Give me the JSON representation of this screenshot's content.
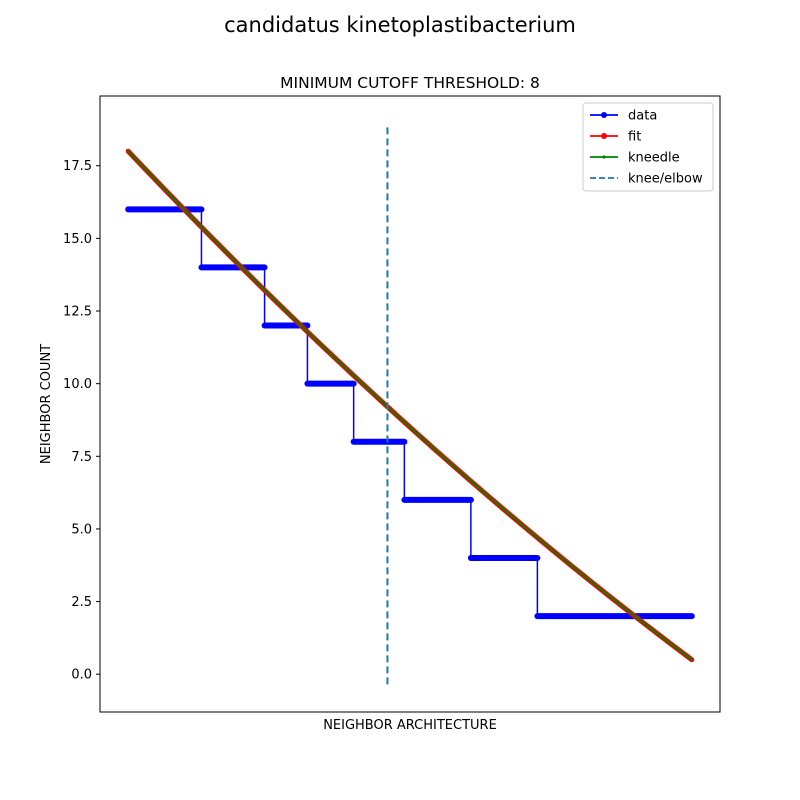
{
  "chart_data": {
    "type": "line",
    "suptitle": "candidatus kinetoplastibacterium",
    "title": "MINIMUM CUTOFF THRESHOLD: 8",
    "xlabel": "NEIGHBOR ARCHITECTURE",
    "ylabel": "NEIGHBOR COUNT",
    "xlim": [
      -2.5,
      52.5
    ],
    "ylim": [
      -1.3,
      19.9
    ],
    "yticks": [
      0.0,
      2.5,
      5.0,
      7.5,
      10.0,
      12.5,
      15.0,
      17.5
    ],
    "ytick_labels": [
      "0.0",
      "2.5",
      "5.0",
      "7.5",
      "10.0",
      "12.5",
      "15.0",
      "17.5"
    ],
    "legend_position": "top-right",
    "data_steps": [
      {
        "value": 16,
        "x_start": 0.0,
        "x_end": 6.5
      },
      {
        "value": 14,
        "x_start": 6.5,
        "x_end": 12.1
      },
      {
        "value": 12,
        "x_start": 12.1,
        "x_end": 15.9
      },
      {
        "value": 10,
        "x_start": 15.9,
        "x_end": 20.0
      },
      {
        "value": 8,
        "x_start": 20.0,
        "x_end": 24.5
      },
      {
        "value": 6,
        "x_start": 24.5,
        "x_end": 30.4
      },
      {
        "value": 4,
        "x_start": 30.4,
        "x_end": 36.3
      },
      {
        "value": 2,
        "x_start": 36.3,
        "x_end": 50.0
      }
    ],
    "fit": {
      "x": [
        0,
        50
      ],
      "y_start": 18.0,
      "y_end": 0.5,
      "curvature": 0.0012
    },
    "knee_x": 23.0,
    "knee_y_range": [
      -0.35,
      18.9
    ],
    "series": [
      {
        "name": "data",
        "color": "#0000ff",
        "marker": "circle"
      },
      {
        "name": "fit",
        "color": "#ff0000",
        "marker": "circle"
      },
      {
        "name": "kneedle",
        "color": "#008000",
        "marker": "point"
      },
      {
        "name": "knee/elbow",
        "color": "#1f77b4",
        "marker": "dashed"
      }
    ]
  }
}
